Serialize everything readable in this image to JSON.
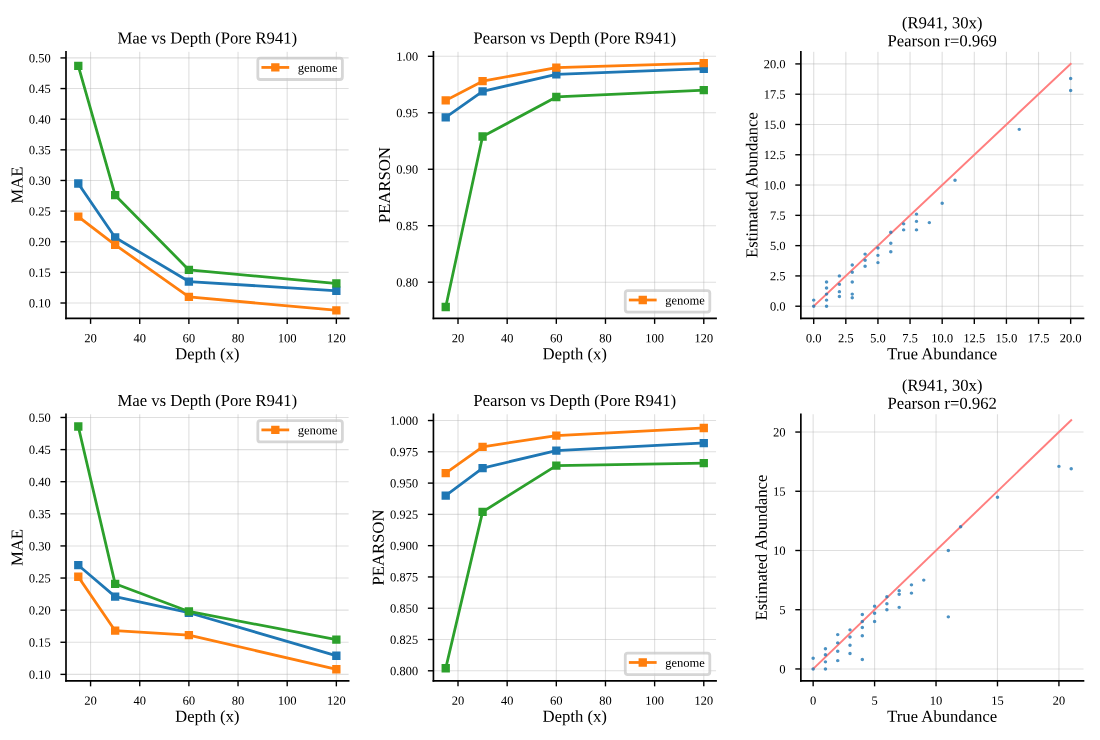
{
  "chart_data": [
    {
      "type": "line",
      "title": "Mae vs Depth (Pore R941)",
      "xlabel": "Depth (x)",
      "ylabel": "MAE",
      "x": [
        15,
        30,
        60,
        120
      ],
      "marker": "square",
      "line_style": "solid",
      "grid": true,
      "legend": "top right",
      "xlim": [
        10,
        125
      ],
      "xticks": [
        20,
        40,
        60,
        80,
        100,
        120
      ],
      "ylim": [
        0.075,
        0.51
      ],
      "yticks": [
        {
          "value": 0.1,
          "label": "0.10"
        },
        {
          "value": 0.15,
          "label": "0.15"
        },
        {
          "value": 0.2,
          "label": "0.20"
        },
        {
          "value": 0.25,
          "label": "0.25"
        },
        {
          "value": 0.3,
          "label": "0.30"
        },
        {
          "value": 0.35,
          "label": "0.35"
        },
        {
          "value": 0.4,
          "label": "0.40"
        },
        {
          "value": 0.45,
          "label": "0.45"
        },
        {
          "value": 0.5,
          "label": "0.50"
        }
      ],
      "series": [
        {
          "color": "#1f77b4",
          "values": [
            0.295,
            0.207,
            0.135,
            0.12
          ]
        },
        {
          "name": "genome",
          "color": "#ff7f0e",
          "values": [
            0.241,
            0.195,
            0.11,
            0.088
          ]
        },
        {
          "color": "#2ca02c",
          "values": [
            0.487,
            0.276,
            0.154,
            0.132
          ]
        }
      ]
    },
    {
      "type": "line",
      "title": "Pearson vs Depth (Pore R941)",
      "xlabel": "Depth (x)",
      "ylabel": "PEARSON",
      "x": [
        15,
        30,
        60,
        120
      ],
      "marker": "square",
      "line_style": "solid",
      "grid": true,
      "legend": "bottom right",
      "xlim": [
        10,
        125
      ],
      "xticks": [
        20,
        40,
        60,
        80,
        100,
        120
      ],
      "ylim": [
        0.768,
        1.004
      ],
      "yticks": [
        {
          "value": 0.8,
          "label": "0.80"
        },
        {
          "value": 0.85,
          "label": "0.85"
        },
        {
          "value": 0.9,
          "label": "0.90"
        },
        {
          "value": 0.95,
          "label": "0.95"
        },
        {
          "value": 1.0,
          "label": "1.00"
        }
      ],
      "series": [
        {
          "color": "#1f77b4",
          "values": [
            0.946,
            0.969,
            0.984,
            0.989
          ]
        },
        {
          "name": "genome",
          "color": "#ff7f0e",
          "values": [
            0.961,
            0.978,
            0.99,
            0.994
          ]
        },
        {
          "color": "#2ca02c",
          "values": [
            0.778,
            0.929,
            0.964,
            0.97
          ]
        }
      ]
    },
    {
      "type": "scatter",
      "title": "(R941, 30x)",
      "subtitle": "Pearson r=0.969",
      "xlabel": "True Abundance",
      "ylabel": "Estimated Abundance",
      "marker": "circle",
      "grid": true,
      "xlim": [
        -1,
        21
      ],
      "ylim": [
        -1,
        21
      ],
      "xticks": [
        {
          "value": 0,
          "label": "0.0"
        },
        {
          "value": 2.5,
          "label": "2.5"
        },
        {
          "value": 5,
          "label": "5.0"
        },
        {
          "value": 7.5,
          "label": "7.5"
        },
        {
          "value": 10,
          "label": "10.0"
        },
        {
          "value": 12.5,
          "label": "12.5"
        },
        {
          "value": 15,
          "label": "15.0"
        },
        {
          "value": 17.5,
          "label": "17.5"
        },
        {
          "value": 20,
          "label": "20.0"
        }
      ],
      "yticks": [
        {
          "value": 0,
          "label": "0.0"
        },
        {
          "value": 2.5,
          "label": "2.5"
        },
        {
          "value": 5,
          "label": "5.0"
        },
        {
          "value": 7.5,
          "label": "7.5"
        },
        {
          "value": 10,
          "label": "10.0"
        },
        {
          "value": 12.5,
          "label": "12.5"
        },
        {
          "value": 15,
          "label": "15.0"
        },
        {
          "value": 17.5,
          "label": "17.5"
        },
        {
          "value": 20,
          "label": "20.0"
        }
      ],
      "series": [
        {
          "color": "#1f77b4",
          "x": [
            0,
            0,
            1,
            1,
            1,
            1,
            1,
            2,
            2,
            2,
            2,
            3,
            3,
            3,
            3,
            3,
            4,
            4,
            4,
            5,
            5,
            5,
            6,
            6,
            6,
            7,
            7,
            8,
            8,
            8,
            9,
            10,
            11,
            16,
            20,
            20
          ],
          "values": [
            0,
            0.5,
            0,
            0.5,
            1.0,
            1.5,
            2.0,
            0.8,
            1.2,
            1.8,
            2.5,
            0.7,
            1.0,
            2.0,
            2.8,
            3.4,
            3.3,
            3.8,
            4.3,
            3.6,
            4.2,
            4.8,
            4.5,
            5.2,
            6.1,
            6.3,
            6.8,
            6.3,
            7.0,
            7.6,
            6.9,
            8.5,
            10.4,
            14.6,
            17.8,
            18.8
          ]
        },
        {
          "type": "line",
          "color": "#ff7f7f",
          "line_style": "solid",
          "marker": "none",
          "x": [
            0,
            20
          ],
          "values": [
            0,
            20
          ]
        }
      ]
    },
    {
      "type": "line",
      "title": "Mae vs Depth (Pore R941)",
      "xlabel": "Depth (x)",
      "ylabel": "MAE",
      "x": [
        15,
        30,
        60,
        120
      ],
      "marker": "square",
      "line_style": "solid",
      "grid": true,
      "legend": "top right",
      "xlim": [
        10,
        125
      ],
      "xticks": [
        20,
        40,
        60,
        80,
        100,
        120
      ],
      "ylim": [
        0.09,
        0.505
      ],
      "yticks": [
        {
          "value": 0.1,
          "label": "0.10"
        },
        {
          "value": 0.15,
          "label": "0.15"
        },
        {
          "value": 0.2,
          "label": "0.20"
        },
        {
          "value": 0.25,
          "label": "0.25"
        },
        {
          "value": 0.3,
          "label": "0.30"
        },
        {
          "value": 0.35,
          "label": "0.35"
        },
        {
          "value": 0.4,
          "label": "0.40"
        },
        {
          "value": 0.45,
          "label": "0.45"
        },
        {
          "value": 0.5,
          "label": "0.50"
        }
      ],
      "series": [
        {
          "color": "#1f77b4",
          "values": [
            0.27,
            0.221,
            0.196,
            0.129
          ]
        },
        {
          "name": "genome",
          "color": "#ff7f0e",
          "values": [
            0.252,
            0.168,
            0.161,
            0.108
          ]
        },
        {
          "color": "#2ca02c",
          "values": [
            0.486,
            0.241,
            0.198,
            0.154
          ]
        }
      ]
    },
    {
      "type": "line",
      "title": "Pearson vs Depth (Pore R941)",
      "xlabel": "Depth (x)",
      "ylabel": "PEARSON",
      "x": [
        15,
        30,
        60,
        120
      ],
      "marker": "square",
      "line_style": "solid",
      "grid": true,
      "legend": "bottom right",
      "xlim": [
        10,
        125
      ],
      "xticks": [
        20,
        40,
        60,
        80,
        100,
        120
      ],
      "ylim": [
        0.792,
        1.005
      ],
      "yticks": [
        {
          "value": 0.8,
          "label": "0.800"
        },
        {
          "value": 0.825,
          "label": "0.825"
        },
        {
          "value": 0.85,
          "label": "0.850"
        },
        {
          "value": 0.875,
          "label": "0.875"
        },
        {
          "value": 0.9,
          "label": "0.900"
        },
        {
          "value": 0.925,
          "label": "0.925"
        },
        {
          "value": 0.95,
          "label": "0.950"
        },
        {
          "value": 0.975,
          "label": "0.975"
        },
        {
          "value": 1.0,
          "label": "1.000"
        }
      ],
      "series": [
        {
          "color": "#1f77b4",
          "values": [
            0.94,
            0.962,
            0.976,
            0.982
          ]
        },
        {
          "name": "genome",
          "color": "#ff7f0e",
          "values": [
            0.958,
            0.979,
            0.988,
            0.994
          ]
        },
        {
          "color": "#2ca02c",
          "values": [
            0.802,
            0.927,
            0.964,
            0.966
          ]
        }
      ]
    },
    {
      "type": "scatter",
      "title": "(R941, 30x)",
      "subtitle": "Pearson r=0.962",
      "xlabel": "True Abundance",
      "ylabel": "Estimated Abundance",
      "marker": "circle",
      "grid": true,
      "xlim": [
        -1,
        22
      ],
      "ylim": [
        -1,
        21.5
      ],
      "xticks": [
        0,
        5,
        10,
        15,
        20
      ],
      "yticks": [
        0,
        5,
        10,
        15,
        20
      ],
      "series": [
        {
          "color": "#1f77b4",
          "x": [
            0,
            0,
            1,
            1,
            1,
            1,
            2,
            2,
            2,
            2,
            3,
            3,
            3,
            3,
            4,
            4,
            4,
            4,
            4,
            5,
            5,
            5,
            6,
            6,
            6,
            7,
            7,
            7,
            8,
            8,
            9,
            11,
            11,
            12,
            15,
            20,
            21
          ],
          "values": [
            0,
            0.9,
            0,
            0.6,
            1.2,
            1.7,
            0.7,
            1.5,
            2.2,
            2.9,
            1.3,
            2.0,
            2.7,
            3.3,
            0.8,
            2.8,
            3.5,
            4.0,
            4.6,
            4.0,
            4.7,
            5.3,
            5.0,
            5.5,
            6.1,
            5.2,
            6.3,
            6.6,
            6.4,
            7.1,
            7.5,
            4.4,
            10.0,
            12.0,
            14.5,
            17.1,
            16.9
          ]
        },
        {
          "type": "line",
          "color": "#ff7f7f",
          "line_style": "solid",
          "marker": "none",
          "x": [
            0,
            21
          ],
          "values": [
            0,
            21
          ]
        }
      ]
    }
  ]
}
